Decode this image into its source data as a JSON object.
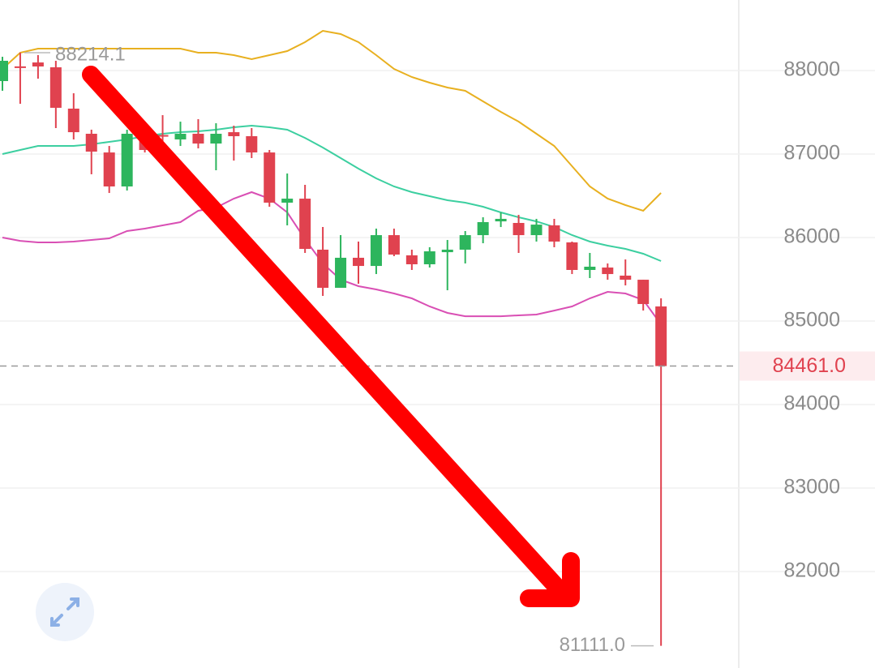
{
  "chart_data": {
    "type": "candlestick",
    "ylim": [
      80845,
      88845
    ],
    "yticks": [
      82000,
      83000,
      84000,
      85000,
      86000,
      87000,
      88000
    ],
    "grid": true,
    "up_color": "#2db55d",
    "down_color": "#e0424f",
    "candles": [
      {
        "open": 87874,
        "high": 88165,
        "low": 87758,
        "close": 88117
      },
      {
        "open": 88050,
        "high": 88214.1,
        "low": 87602,
        "close": 88040
      },
      {
        "open": 88097,
        "high": 88185,
        "low": 87903,
        "close": 88049
      },
      {
        "open": 88039,
        "high": 88117,
        "low": 87311,
        "close": 87554
      },
      {
        "open": 87544,
        "high": 87728,
        "low": 87175,
        "close": 87262
      },
      {
        "open": 87243,
        "high": 87292,
        "low": 86758,
        "close": 87029
      },
      {
        "open": 87019,
        "high": 87097,
        "low": 86534,
        "close": 86612
      },
      {
        "open": 86612,
        "high": 87292,
        "low": 86563,
        "close": 87243
      },
      {
        "open": 87243,
        "high": 87388,
        "low": 87019,
        "close": 87049
      },
      {
        "open": 87228,
        "high": 87466,
        "low": 87136,
        "close": 87214
      },
      {
        "open": 87175,
        "high": 87388,
        "low": 87097,
        "close": 87243
      },
      {
        "open": 87243,
        "high": 87418,
        "low": 87068,
        "close": 87126
      },
      {
        "open": 87126,
        "high": 87369,
        "low": 86806,
        "close": 87243
      },
      {
        "open": 87262,
        "high": 87340,
        "low": 86922,
        "close": 87214
      },
      {
        "open": 87214,
        "high": 87311,
        "low": 86952,
        "close": 87019
      },
      {
        "open": 87019,
        "high": 87049,
        "low": 86369,
        "close": 86418
      },
      {
        "open": 86418,
        "high": 86767,
        "low": 86146,
        "close": 86466
      },
      {
        "open": 86466,
        "high": 86631,
        "low": 85816,
        "close": 85864
      },
      {
        "open": 85855,
        "high": 86126,
        "low": 85301,
        "close": 85398
      },
      {
        "open": 85398,
        "high": 86029,
        "low": 85398,
        "close": 85758
      },
      {
        "open": 85758,
        "high": 85952,
        "low": 85447,
        "close": 85660
      },
      {
        "open": 85660,
        "high": 86107,
        "low": 85563,
        "close": 86029
      },
      {
        "open": 86029,
        "high": 86107,
        "low": 85777,
        "close": 85796
      },
      {
        "open": 85787,
        "high": 85855,
        "low": 85612,
        "close": 85680
      },
      {
        "open": 85680,
        "high": 85884,
        "low": 85641,
        "close": 85835
      },
      {
        "open": 85825,
        "high": 85971,
        "low": 85369,
        "close": 85855
      },
      {
        "open": 85855,
        "high": 86078,
        "low": 85690,
        "close": 86029
      },
      {
        "open": 86029,
        "high": 86243,
        "low": 85932,
        "close": 86185
      },
      {
        "open": 86194,
        "high": 86301,
        "low": 86126,
        "close": 86224
      },
      {
        "open": 86175,
        "high": 86272,
        "low": 85816,
        "close": 86029
      },
      {
        "open": 86029,
        "high": 86224,
        "low": 85952,
        "close": 86155
      },
      {
        "open": 86146,
        "high": 86224,
        "low": 85884,
        "close": 85952
      },
      {
        "open": 85942,
        "high": 85952,
        "low": 85563,
        "close": 85612
      },
      {
        "open": 85612,
        "high": 85816,
        "low": 85515,
        "close": 85651
      },
      {
        "open": 85641,
        "high": 85690,
        "low": 85495,
        "close": 85563
      },
      {
        "open": 85544,
        "high": 85738,
        "low": 85427,
        "close": 85495
      },
      {
        "open": 85495,
        "high": 85495,
        "low": 85126,
        "close": 85204
      },
      {
        "open": 85175,
        "high": 85272,
        "low": 81111,
        "close": 84461
      }
    ],
    "series": [
      {
        "color": "#e8b020",
        "values": [
          88020,
          88214,
          88262,
          88262,
          88262,
          88262,
          88262,
          88262,
          88262,
          88262,
          88262,
          88214,
          88214,
          88185,
          88136,
          88185,
          88233,
          88340,
          88476,
          88437,
          88340,
          88185,
          88020,
          87923,
          87855,
          87796,
          87758,
          87631,
          87505,
          87389,
          87243,
          87097,
          86855,
          86612,
          86466,
          86389,
          86321,
          86534
        ]
      },
      {
        "color": "#3ccfa0",
        "values": [
          87000,
          87049,
          87097,
          87097,
          87097,
          87117,
          87146,
          87175,
          87214,
          87243,
          87262,
          87272,
          87292,
          87321,
          87340,
          87321,
          87292,
          87194,
          87078,
          86952,
          86826,
          86709,
          86612,
          86544,
          86495,
          86447,
          86418,
          86369,
          86301,
          86243,
          86194,
          86126,
          86029,
          85952,
          85903,
          85864,
          85806,
          85719
        ]
      },
      {
        "color": "#d94fb4",
        "values": [
          86000,
          85961,
          85942,
          85942,
          85952,
          85971,
          85991,
          86078,
          86107,
          86146,
          86185,
          86321,
          86359,
          86466,
          86544,
          86466,
          86301,
          85981,
          85690,
          85495,
          85418,
          85379,
          85330,
          85272,
          85175,
          85097,
          85058,
          85058,
          85058,
          85068,
          85078,
          85126,
          85175,
          85272,
          85350,
          85330,
          85253,
          84961
        ]
      }
    ],
    "annotations": {
      "high": {
        "value": 88214.1,
        "label": "88214.1"
      },
      "low": {
        "value": 81111,
        "label": "81111.0"
      },
      "last": {
        "value": 84461,
        "label": "84461.0"
      }
    }
  }
}
